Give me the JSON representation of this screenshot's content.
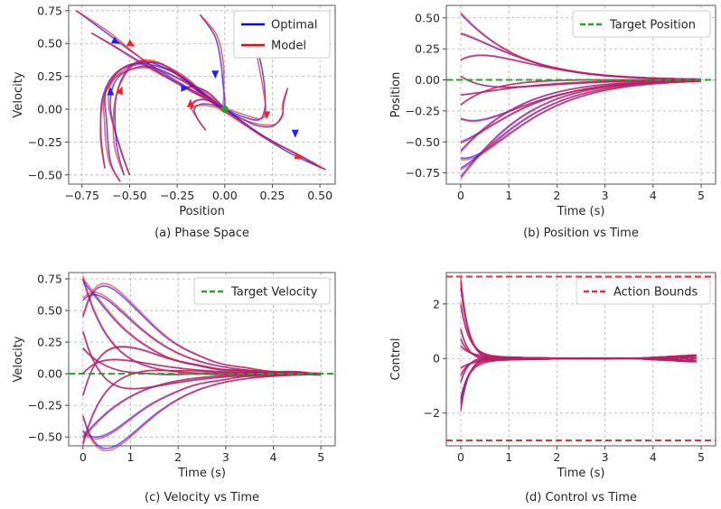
{
  "figure": {
    "colors": {
      "optimal": "#1f1fff",
      "model": "#ff1f1f",
      "target": "#2ca02c",
      "bounds": "#e03535",
      "grid": "#b0b0b0"
    }
  },
  "chart_data": [
    {
      "id": "phase",
      "type": "line",
      "title": "(a) Phase Space",
      "xlabel": "Position",
      "ylabel": "Velocity",
      "xlim": [
        -0.82,
        0.58
      ],
      "ylim": [
        -0.57,
        0.79
      ],
      "xticks": [
        -0.75,
        -0.5,
        -0.25,
        0.0,
        0.25,
        0.5
      ],
      "xtick_labels": [
        "−0.75",
        "−0.50",
        "−0.25",
        "0.00",
        "0.25",
        "0.50"
      ],
      "yticks": [
        -0.5,
        -0.25,
        0.0,
        0.25,
        0.5,
        0.75
      ],
      "ytick_labels": [
        "−0.50",
        "−0.25",
        "0.00",
        "0.25",
        "0.50",
        "0.75"
      ],
      "legend": {
        "location": "top-right",
        "entries": [
          "Optimal",
          "Model"
        ]
      },
      "trajectories": [
        [
          [
            -0.78,
            0.75
          ],
          [
            -0.62,
            0.58
          ],
          [
            -0.5,
            0.45
          ],
          [
            -0.35,
            0.3
          ],
          [
            -0.2,
            0.17
          ],
          [
            -0.08,
            0.07
          ],
          [
            0.0,
            0.0
          ]
        ],
        [
          [
            -0.7,
            0.58
          ],
          [
            -0.58,
            0.48
          ],
          [
            -0.42,
            0.34
          ],
          [
            -0.25,
            0.2
          ],
          [
            -0.1,
            0.08
          ],
          [
            0.0,
            0.0
          ]
        ],
        [
          [
            -0.5,
            -0.5
          ],
          [
            -0.55,
            -0.3
          ],
          [
            -0.6,
            0.0
          ],
          [
            -0.58,
            0.2
          ],
          [
            -0.5,
            0.3
          ],
          [
            -0.38,
            0.32
          ],
          [
            -0.2,
            0.2
          ],
          [
            -0.08,
            0.07
          ],
          [
            0.0,
            0.0
          ]
        ],
        [
          [
            -0.55,
            -0.55
          ],
          [
            -0.6,
            -0.4
          ],
          [
            -0.62,
            -0.1
          ],
          [
            -0.62,
            0.15
          ],
          [
            -0.5,
            0.34
          ],
          [
            -0.3,
            0.3
          ],
          [
            -0.12,
            0.12
          ],
          [
            0.0,
            0.0
          ]
        ],
        [
          [
            -0.53,
            -0.5
          ],
          [
            -0.57,
            -0.25
          ],
          [
            -0.57,
            0.1
          ],
          [
            -0.5,
            0.32
          ],
          [
            -0.4,
            0.36
          ],
          [
            -0.22,
            0.24
          ],
          [
            -0.08,
            0.08
          ],
          [
            0.0,
            0.0
          ]
        ],
        [
          [
            -0.63,
            -0.45
          ],
          [
            -0.65,
            -0.2
          ],
          [
            -0.64,
            0.1
          ],
          [
            -0.55,
            0.3
          ],
          [
            -0.35,
            0.35
          ],
          [
            -0.15,
            0.16
          ],
          [
            0.0,
            0.0
          ]
        ],
        [
          [
            -0.13,
            0.72
          ],
          [
            -0.05,
            0.55
          ],
          [
            -0.02,
            0.35
          ],
          [
            -0.01,
            0.2
          ],
          [
            0.0,
            0.08
          ],
          [
            0.0,
            0.0
          ]
        ],
        [
          [
            -0.2,
            0.17
          ],
          [
            -0.15,
            0.17
          ],
          [
            -0.08,
            0.12
          ],
          [
            -0.03,
            0.05
          ],
          [
            0.0,
            0.0
          ]
        ],
        [
          [
            -0.18,
            0.0
          ],
          [
            -0.16,
            0.06
          ],
          [
            -0.1,
            0.07
          ],
          [
            -0.04,
            0.04
          ],
          [
            0.0,
            0.0
          ]
        ],
        [
          [
            -0.1,
            -0.16
          ],
          [
            -0.14,
            -0.08
          ],
          [
            -0.16,
            0.0
          ],
          [
            -0.12,
            0.04
          ],
          [
            -0.05,
            0.03
          ],
          [
            0.0,
            0.0
          ]
        ],
        [
          [
            0.15,
            0.54
          ],
          [
            0.19,
            0.35
          ],
          [
            0.21,
            0.15
          ],
          [
            0.21,
            0.0
          ],
          [
            0.18,
            -0.08
          ],
          [
            0.1,
            -0.06
          ],
          [
            0.02,
            -0.01
          ],
          [
            0.0,
            0.0
          ]
        ],
        [
          [
            0.33,
            0.16
          ],
          [
            0.31,
            0.05
          ],
          [
            0.3,
            -0.05
          ],
          [
            0.25,
            -0.13
          ],
          [
            0.16,
            -0.12
          ],
          [
            0.06,
            -0.05
          ],
          [
            0.0,
            0.0
          ]
        ],
        [
          [
            0.53,
            -0.46
          ],
          [
            0.42,
            -0.39
          ],
          [
            0.3,
            -0.3
          ],
          [
            0.15,
            -0.16
          ],
          [
            0.05,
            -0.05
          ],
          [
            0.0,
            0.0
          ]
        ],
        [
          [
            0.5,
            -0.44
          ],
          [
            0.36,
            -0.33
          ],
          [
            0.22,
            -0.22
          ],
          [
            0.1,
            -0.1
          ],
          [
            0.03,
            -0.03
          ],
          [
            0.0,
            0.0
          ]
        ]
      ],
      "arrows": [
        [
          -0.58,
          0.52,
          0.06,
          -0.05
        ],
        [
          -0.5,
          0.5,
          0.05,
          -0.04
        ],
        [
          -0.6,
          0.12,
          0.0,
          0.08
        ],
        [
          -0.55,
          0.13,
          0.02,
          0.07
        ],
        [
          -0.05,
          0.28,
          0.0,
          -0.08
        ],
        [
          -0.18,
          0.03,
          0.0,
          0.07
        ],
        [
          -0.22,
          0.16,
          0.06,
          0.0
        ],
        [
          0.22,
          -0.03,
          0.0,
          -0.07
        ],
        [
          0.37,
          -0.17,
          0.0,
          -0.07
        ],
        [
          0.38,
          -0.36,
          0.06,
          -0.04
        ]
      ],
      "target_marker": [
        0.0,
        0.0
      ]
    },
    {
      "id": "position",
      "type": "line",
      "title": "(b) Position vs Time",
      "xlabel": "Time (s)",
      "ylabel": "Position",
      "xlim": [
        -0.3,
        5.3
      ],
      "ylim": [
        -0.84,
        0.6
      ],
      "xticks": [
        0,
        1,
        2,
        3,
        4,
        5
      ],
      "xtick_labels": [
        "0",
        "1",
        "2",
        "3",
        "4",
        "5"
      ],
      "yticks": [
        -0.75,
        -0.5,
        -0.25,
        0.0,
        0.25,
        0.5
      ],
      "ytick_labels": [
        "−0.75",
        "−0.50",
        "−0.25",
        "0.00",
        "0.25",
        "0.50"
      ],
      "legend": {
        "location": "top-right",
        "entries": [
          "Target Position"
        ]
      },
      "target_value": 0.0,
      "initial_positions": [
        0.53,
        0.37,
        0.16,
        0.03,
        -0.12,
        -0.2,
        -0.31,
        -0.5,
        -0.57,
        -0.63,
        -0.71,
        -0.78
      ]
    },
    {
      "id": "velocity",
      "type": "line",
      "title": "(c) Velocity vs Time",
      "xlabel": "Time (s)",
      "ylabel": "Velocity",
      "xlim": [
        -0.3,
        5.3
      ],
      "ylim": [
        -0.57,
        0.8
      ],
      "xticks": [
        0,
        1,
        2,
        3,
        4,
        5
      ],
      "xtick_labels": [
        "0",
        "1",
        "2",
        "3",
        "4",
        "5"
      ],
      "yticks": [
        -0.5,
        -0.25,
        0.0,
        0.25,
        0.5,
        0.75
      ],
      "ytick_labels": [
        "−0.50",
        "−0.25",
        "0.00",
        "0.25",
        "0.50",
        "0.75"
      ],
      "legend": {
        "location": "top-right",
        "entries": [
          "Target Velocity"
        ]
      },
      "target_value": 0.0,
      "initial_velocities": [
        0.75,
        0.73,
        0.58,
        0.45,
        0.33,
        0.2,
        0.0,
        -0.17,
        -0.33,
        -0.45,
        -0.5,
        -0.55
      ]
    },
    {
      "id": "control",
      "type": "line",
      "title": "(d) Control vs Time",
      "xlabel": "Time (s)",
      "ylabel": "Control",
      "xlim": [
        -0.3,
        5.3
      ],
      "ylim": [
        -3.2,
        3.15
      ],
      "xticks": [
        0,
        1,
        2,
        3,
        4,
        5
      ],
      "xtick_labels": [
        "0",
        "1",
        "2",
        "3",
        "4",
        "5"
      ],
      "yticks": [
        -2,
        0,
        2
      ],
      "ytick_labels": [
        "−2",
        "0",
        "2"
      ],
      "legend": {
        "location": "top-right",
        "entries": [
          "Action Bounds"
        ]
      },
      "bounds": [
        -3.0,
        3.0
      ],
      "initial_controls": [
        3.0,
        2.6,
        1.8,
        1.2,
        0.7,
        0.3,
        -0.2,
        -0.6,
        -1.0,
        -1.3,
        -1.6,
        -2.0
      ]
    }
  ]
}
